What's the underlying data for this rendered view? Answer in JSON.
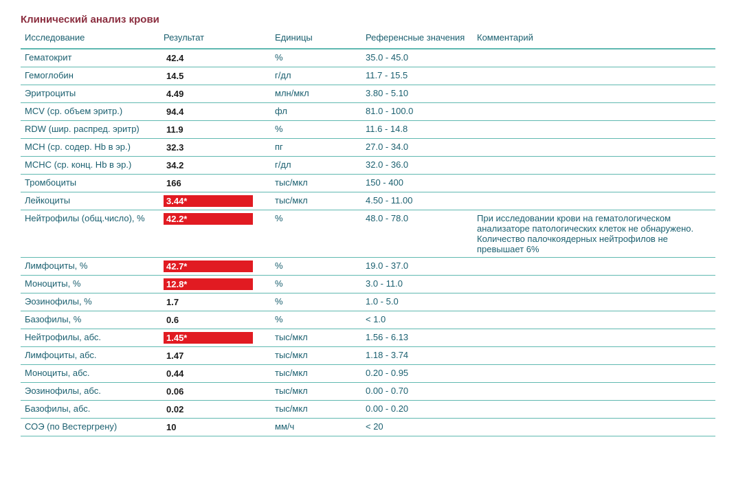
{
  "title": "Клинический анализ крови",
  "headers": {
    "test": "Исследование",
    "result": "Результат",
    "units": "Единицы",
    "ref": "Референсные значения",
    "comment": "Комментарий"
  },
  "colors": {
    "title": "#8b2e3f",
    "text": "#1a5f6f",
    "border": "#5fb8b0",
    "flag_bg": "#e11b22",
    "flag_text": "#ffffff",
    "result_text": "#1a1a1a"
  },
  "rows": [
    {
      "test": "Гематокрит",
      "result": "42.4",
      "flag": false,
      "units": "%",
      "ref": "35.0 - 45.0",
      "comment": ""
    },
    {
      "test": "Гемоглобин",
      "result": "14.5",
      "flag": false,
      "units": "г/дл",
      "ref": "11.7 - 15.5",
      "comment": ""
    },
    {
      "test": "Эритроциты",
      "result": "4.49",
      "flag": false,
      "units": "млн/мкл",
      "ref": "3.80 - 5.10",
      "comment": ""
    },
    {
      "test": "MCV (ср. объем эритр.)",
      "result": "94.4",
      "flag": false,
      "units": "фл",
      "ref": "81.0 - 100.0",
      "comment": ""
    },
    {
      "test": "RDW (шир. распред. эритр)",
      "result": "11.9",
      "flag": false,
      "units": "%",
      "ref": "11.6 - 14.8",
      "comment": ""
    },
    {
      "test": "MCH (ср. содер. Hb в эр.)",
      "result": "32.3",
      "flag": false,
      "units": "пг",
      "ref": "27.0 - 34.0",
      "comment": ""
    },
    {
      "test": "МСНС (ср. конц. Hb в эр.)",
      "result": "34.2",
      "flag": false,
      "units": "г/дл",
      "ref": "32.0 - 36.0",
      "comment": ""
    },
    {
      "test": "Тромбоциты",
      "result": "166",
      "flag": false,
      "units": "тыс/мкл",
      "ref": "150 - 400",
      "comment": ""
    },
    {
      "test": "Лейкоциты",
      "result": "3.44*",
      "flag": true,
      "units": "тыс/мкл",
      "ref": "4.50 - 11.00",
      "comment": ""
    },
    {
      "test": "Нейтрофилы (общ.число), %",
      "result": "42.2*",
      "flag": true,
      "units": "%",
      "ref": "48.0 - 78.0",
      "comment": "При исследовании крови на гематологическом анализаторе патологических клеток не обнаружено. Количество палочкоядерных нейтрофилов не превышает 6%"
    },
    {
      "test": "Лимфоциты, %",
      "result": "42.7*",
      "flag": true,
      "units": "%",
      "ref": "19.0 - 37.0",
      "comment": ""
    },
    {
      "test": "Моноциты, %",
      "result": "12.8*",
      "flag": true,
      "units": "%",
      "ref": "3.0 - 11.0",
      "comment": ""
    },
    {
      "test": "Эозинофилы, %",
      "result": "1.7",
      "flag": false,
      "units": "%",
      "ref": "1.0 - 5.0",
      "comment": ""
    },
    {
      "test": "Базофилы, %",
      "result": "0.6",
      "flag": false,
      "units": "%",
      "ref": "< 1.0",
      "comment": ""
    },
    {
      "test": "Нейтрофилы, абс.",
      "result": "1.45*",
      "flag": true,
      "units": "тыс/мкл",
      "ref": "1.56 - 6.13",
      "comment": ""
    },
    {
      "test": "Лимфоциты, абс.",
      "result": "1.47",
      "flag": false,
      "units": "тыс/мкл",
      "ref": "1.18 - 3.74",
      "comment": ""
    },
    {
      "test": "Моноциты, абс.",
      "result": "0.44",
      "flag": false,
      "units": "тыс/мкл",
      "ref": "0.20 - 0.95",
      "comment": ""
    },
    {
      "test": "Эозинофилы, абс.",
      "result": "0.06",
      "flag": false,
      "units": "тыс/мкл",
      "ref": "0.00 - 0.70",
      "comment": ""
    },
    {
      "test": "Базофилы, абс.",
      "result": "0.02",
      "flag": false,
      "units": "тыс/мкл",
      "ref": "0.00 - 0.20",
      "comment": ""
    },
    {
      "test": "СОЭ (по Вестергрену)",
      "result": "10",
      "flag": false,
      "units": "мм/ч",
      "ref": "< 20",
      "comment": ""
    }
  ]
}
